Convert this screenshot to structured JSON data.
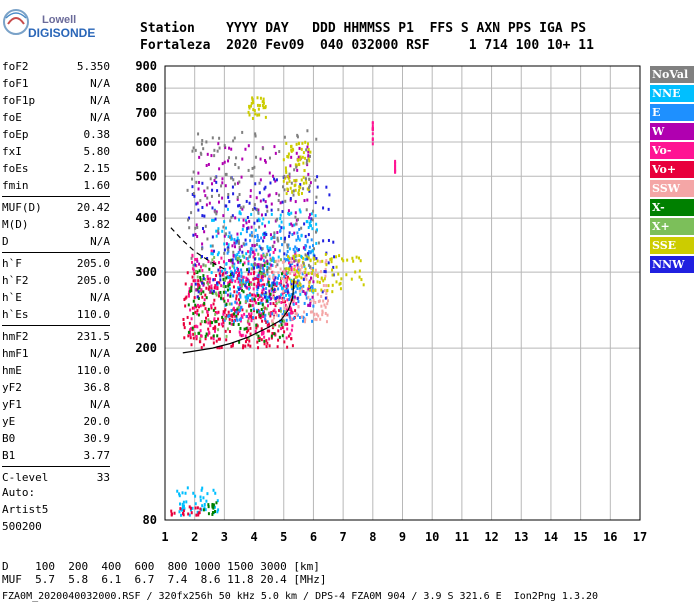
{
  "logo": {
    "line1": "Lowell",
    "line2": "DIGISONDE"
  },
  "header": {
    "labels": "Station    YYYY DAY   DDD HHMMSS P1  FFS S AXN PPS IGA PS",
    "values": "Fortaleza  2020 Fev09  040 032000 RSF     1 714 100 10+ 11"
  },
  "params": {
    "group1": [
      {
        "label": "foF2",
        "value": "5.350"
      },
      {
        "label": "foF1",
        "value": "N/A"
      },
      {
        "label": "foF1p",
        "value": "N/A"
      },
      {
        "label": "foE",
        "value": "N/A"
      },
      {
        "label": "foEp",
        "value": "0.38"
      },
      {
        "label": "fxI",
        "value": "5.80"
      },
      {
        "label": "foEs",
        "value": "2.15"
      },
      {
        "label": "fmin",
        "value": "1.60"
      }
    ],
    "group2": [
      {
        "label": "MUF(D)",
        "value": "20.42"
      },
      {
        "label": "M(D)",
        "value": "3.82"
      },
      {
        "label": "D",
        "value": "N/A"
      }
    ],
    "group3": [
      {
        "label": "h`F",
        "value": "205.0"
      },
      {
        "label": "h`F2",
        "value": "205.0"
      },
      {
        "label": "h`E",
        "value": "N/A"
      },
      {
        "label": "h`Es",
        "value": "110.0"
      }
    ],
    "group4": [
      {
        "label": "hmF2",
        "value": "231.5"
      },
      {
        "label": "hmF1",
        "value": "N/A"
      },
      {
        "label": "hmE",
        "value": "110.0"
      },
      {
        "label": "yF2",
        "value": "36.8"
      },
      {
        "label": "yF1",
        "value": "N/A"
      },
      {
        "label": "yE",
        "value": "20.0"
      },
      {
        "label": "B0",
        "value": "30.9"
      },
      {
        "label": "B1",
        "value": "3.77"
      }
    ],
    "group5": [
      {
        "label": "C-level",
        "value": "33"
      }
    ]
  },
  "auto": {
    "line1": "Auto:",
    "line2": "Artist5",
    "line3": "500200"
  },
  "legend": [
    {
      "label": "NoVal",
      "color": "#808080"
    },
    {
      "label": "NNE",
      "color": "#00bfff"
    },
    {
      "label": "E",
      "color": "#1e90ff"
    },
    {
      "label": "W",
      "color": "#b000b0"
    },
    {
      "label": "Vo-",
      "color": "#ff1493"
    },
    {
      "label": "Vo+",
      "color": "#e8003c"
    },
    {
      "label": "SSW",
      "color": "#f4a6a6"
    },
    {
      "label": "X-",
      "color": "#008000"
    },
    {
      "label": "X+",
      "color": "#7cbf5a"
    },
    {
      "label": "SSE",
      "color": "#cccc00"
    },
    {
      "label": "NNW",
      "color": "#2020e0"
    }
  ],
  "footer": {
    "line1": "D    100  200  400  600  800 1000 1500 3000 [km]",
    "line2": "MUF  5.7  5.8  6.1  6.7  7.4  8.6 11.8 20.4 [MHz]",
    "line3": "FZA0M_2020040032000.RSF / 320fx256h 50 kHz 5.0 km / DPS-4 FZA0M 904 / 3.9 S 321.6 E  Ion2Png 1.3.20"
  },
  "chart_data": {
    "type": "scatter",
    "title": "",
    "xlabel": "",
    "ylabel": "",
    "xlim": [
      1,
      17
    ],
    "ylim": [
      80,
      900
    ],
    "y_scale": "log",
    "x_ticks": [
      1,
      2,
      3,
      4,
      5,
      6,
      7,
      8,
      9,
      10,
      11,
      12,
      13,
      14,
      15,
      16,
      17
    ],
    "y_ticks": [
      80,
      200,
      300,
      400,
      500,
      600,
      700,
      800,
      900
    ],
    "grid": true,
    "legend_position": "right",
    "clusters": [
      {
        "category": "Vo+",
        "x": [
          1.6,
          5.4
        ],
        "y": [
          200,
          300
        ],
        "count": 320
      },
      {
        "category": "Vo-",
        "x": [
          1.8,
          5.5
        ],
        "y": [
          210,
          340
        ],
        "count": 220
      },
      {
        "category": "E",
        "x": [
          3.0,
          6.0
        ],
        "y": [
          230,
          380
        ],
        "count": 240
      },
      {
        "category": "NNE",
        "x": [
          2.5,
          6.2
        ],
        "y": [
          260,
          420
        ],
        "count": 160
      },
      {
        "category": "X-",
        "x": [
          1.8,
          5.0
        ],
        "y": [
          205,
          320
        ],
        "count": 110
      },
      {
        "category": "X+",
        "x": [
          2.0,
          5.2
        ],
        "y": [
          210,
          330
        ],
        "count": 70
      },
      {
        "category": "SSW",
        "x": [
          4.5,
          6.5
        ],
        "y": [
          230,
          320
        ],
        "count": 120
      },
      {
        "category": "W",
        "x": [
          2.0,
          6.0
        ],
        "y": [
          250,
          600
        ],
        "count": 180
      },
      {
        "category": "NNW",
        "x": [
          1.8,
          6.8
        ],
        "y": [
          260,
          500
        ],
        "count": 140
      },
      {
        "category": "SSE",
        "x": [
          5.0,
          7.7
        ],
        "y": [
          270,
          330
        ],
        "count": 90
      },
      {
        "category": "SSE",
        "x": [
          5.0,
          5.9
        ],
        "y": [
          450,
          600
        ],
        "count": 70
      },
      {
        "category": "SSE",
        "x": [
          3.8,
          4.4
        ],
        "y": [
          680,
          760
        ],
        "count": 30
      },
      {
        "category": "NoVal",
        "x": [
          1.7,
          6.2
        ],
        "y": [
          300,
          640
        ],
        "count": 160
      },
      {
        "category": "NNE",
        "x": [
          1.4,
          2.8
        ],
        "y": [
          82,
          95
        ],
        "count": 45
      },
      {
        "category": "Vo+",
        "x": [
          1.2,
          2.2
        ],
        "y": [
          82,
          86
        ],
        "count": 20
      },
      {
        "category": "X-",
        "x": [
          2.3,
          2.8
        ],
        "y": [
          82,
          88
        ],
        "count": 15
      },
      {
        "category": "Vo-",
        "x": [
          8.0,
          8.0
        ],
        "y": [
          590,
          670
        ],
        "count": 12
      },
      {
        "category": "Vo-",
        "x": [
          8.75,
          8.75
        ],
        "y": [
          490,
          560
        ],
        "count": 10
      }
    ],
    "fit_curve": {
      "solid": {
        "x": [
          1.6,
          2.0,
          2.6,
          3.2,
          3.8,
          4.4,
          4.9,
          5.15,
          5.3,
          5.35
        ],
        "y": [
          195,
          197,
          200,
          205,
          212,
          222,
          232,
          245,
          262,
          290
        ]
      },
      "dashed": {
        "x": [
          1.2,
          1.6,
          2.0,
          2.5,
          3.0
        ],
        "y": [
          380,
          355,
          335,
          318,
          305
        ]
      }
    }
  }
}
